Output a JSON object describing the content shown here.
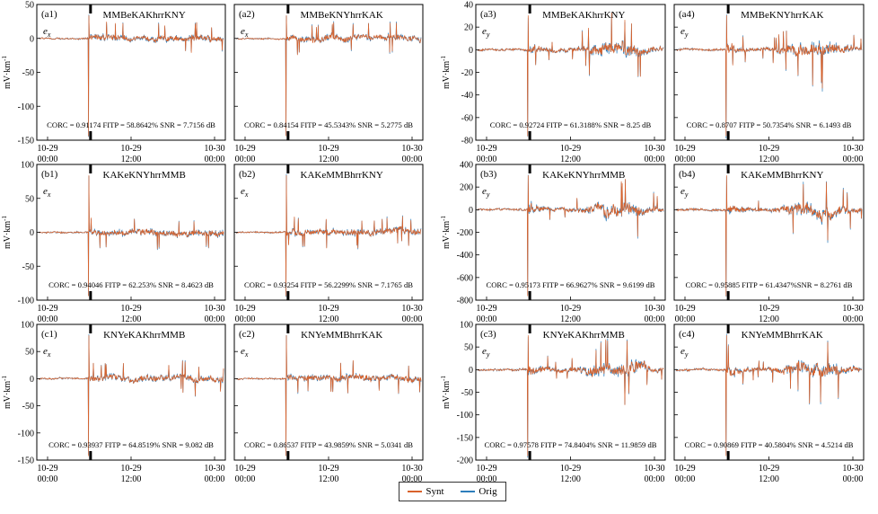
{
  "legend": {
    "synt": "Synt",
    "orig": "Orig"
  },
  "colors": {
    "synt": "#d9622b",
    "orig": "#2e7ebc"
  },
  "chart_data": [
    {
      "id": "a1",
      "label": "(a1)",
      "title": "MMBeKAKhrrKNY",
      "comp": "e",
      "sub": "x",
      "type": "line",
      "ylabel": "mV·km",
      "ylabel_sup": "-1",
      "ylim": [
        -150,
        50
      ],
      "yticks": [
        -150,
        -100,
        -50,
        0,
        50
      ],
      "xticks": [
        {
          "top": "10-29",
          "bot": "00:00"
        },
        {
          "top": "10-29",
          "bot": "12:00"
        },
        {
          "top": "10-30",
          "bot": "00:00"
        }
      ],
      "stats": "CORC = 0.91174   FITP = 58.8642%   SNR = 7.7156 dB"
    },
    {
      "id": "a2",
      "label": "(a2)",
      "title": "MMBeKNYhrrKAK",
      "comp": "e",
      "sub": "x",
      "type": "line",
      "ylabel": "",
      "ylabel_sup": "",
      "ylim": [
        -150,
        50
      ],
      "yticks": [],
      "xticks": [
        {
          "top": "10-29",
          "bot": "00:00"
        },
        {
          "top": "10-29",
          "bot": "12:00"
        },
        {
          "top": "10-30",
          "bot": "00:00"
        }
      ],
      "stats": "CORC = 0.84154   FITP = 45.5343%   SNR = 5.2775 dB"
    },
    {
      "id": "a3",
      "label": "(a3)",
      "title": "MMBeKAKhrrKNY",
      "comp": "e",
      "sub": "y",
      "type": "line",
      "ylabel": "mV·km",
      "ylabel_sup": "-1",
      "ylim": [
        -80,
        40
      ],
      "yticks": [
        -80,
        -60,
        -40,
        -20,
        0,
        20,
        40
      ],
      "xticks": [
        {
          "top": "10-29",
          "bot": "00:00"
        },
        {
          "top": "10-29",
          "bot": "12:00"
        },
        {
          "top": "10-30",
          "bot": "00:00"
        }
      ],
      "stats": "CORC = 0.92724   FITP = 61.3188%   SNR = 8.25 dB"
    },
    {
      "id": "a4",
      "label": "(a4)",
      "title": "MMBeKNYhrrKAK",
      "comp": "e",
      "sub": "y",
      "type": "line",
      "ylabel": "",
      "ylabel_sup": "",
      "ylim": [
        -80,
        40
      ],
      "yticks": [],
      "xticks": [
        {
          "top": "10-29",
          "bot": "00:00"
        },
        {
          "top": "10-29",
          "bot": "12:00"
        },
        {
          "top": "10-30",
          "bot": "00:00"
        }
      ],
      "stats": "CORC = 0.8707   FITP = 50.7354%   SNR = 6.1493 dB"
    },
    {
      "id": "b1",
      "label": "(b1)",
      "title": "KAKeKNYhrrMMB",
      "comp": "e",
      "sub": "x",
      "type": "line",
      "ylabel": "mV·km",
      "ylabel_sup": "-1",
      "ylim": [
        -100,
        100
      ],
      "yticks": [
        -100,
        -50,
        0,
        50,
        100
      ],
      "xticks": [
        {
          "top": "10-29",
          "bot": "00:00"
        },
        {
          "top": "10-29",
          "bot": "12:00"
        },
        {
          "top": "10-30",
          "bot": "00:00"
        }
      ],
      "stats": "CORC = 0.94046   FITP = 62.253%   SNR = 8.4623 dB"
    },
    {
      "id": "b2",
      "label": "(b2)",
      "title": "KAKeMMBhrrKNY",
      "comp": "e",
      "sub": "x",
      "type": "line",
      "ylabel": "",
      "ylabel_sup": "",
      "ylim": [
        -100,
        100
      ],
      "yticks": [],
      "xticks": [
        {
          "top": "10-29",
          "bot": "00:00"
        },
        {
          "top": "10-29",
          "bot": "12:00"
        },
        {
          "top": "10-30",
          "bot": "00:00"
        }
      ],
      "stats": "CORC = 0.93254   FITP = 56.2299%   SNR = 7.1765 dB"
    },
    {
      "id": "b3",
      "label": "(b3)",
      "title": "KAKeKNYhrrMMB",
      "comp": "e",
      "sub": "y",
      "type": "line",
      "ylabel": "mV·km",
      "ylabel_sup": "-1",
      "ylim": [
        -800,
        400
      ],
      "yticks": [
        -800,
        -600,
        -400,
        -200,
        0,
        200,
        400
      ],
      "xticks": [
        {
          "top": "10-29",
          "bot": "00:00"
        },
        {
          "top": "10-29",
          "bot": "12:00"
        },
        {
          "top": "10-30",
          "bot": "00:00"
        }
      ],
      "stats": "CORC = 0.95173   FITP = 66.9627%   SNR = 9.6199 dB"
    },
    {
      "id": "b4",
      "label": "(b4)",
      "title": "KAKeMMBhrrKNY",
      "comp": "e",
      "sub": "y",
      "type": "line",
      "ylabel": "",
      "ylabel_sup": "",
      "ylim": [
        -800,
        400
      ],
      "yticks": [],
      "xticks": [
        {
          "top": "10-29",
          "bot": "00:00"
        },
        {
          "top": "10-29",
          "bot": "12:00"
        },
        {
          "top": "10-30",
          "bot": "00:00"
        }
      ],
      "stats": "CORC = 0.95885   FITP = 61.4347%SNR = 8.2761 dB"
    },
    {
      "id": "c1",
      "label": "(c1)",
      "title": "KNYeKAKhrrMMB",
      "comp": "e",
      "sub": "x",
      "type": "line",
      "ylabel": "mV·km",
      "ylabel_sup": "-1",
      "ylim": [
        -150,
        100
      ],
      "yticks": [
        -150,
        -100,
        -50,
        0,
        50,
        100
      ],
      "xticks": [
        {
          "top": "10-29",
          "bot": "00:00"
        },
        {
          "top": "10-29",
          "bot": "12:00"
        },
        {
          "top": "10-30",
          "bot": "00:00"
        }
      ],
      "stats": "CORC = 0.93937   FITP = 64.8519%   SNR = 9.082 dB"
    },
    {
      "id": "c2",
      "label": "(c2)",
      "title": "KNYeMMBhrrKAK",
      "comp": "e",
      "sub": "x",
      "type": "line",
      "ylabel": "",
      "ylabel_sup": "",
      "ylim": [
        -150,
        100
      ],
      "yticks": [],
      "xticks": [
        {
          "top": "10-29",
          "bot": "00:00"
        },
        {
          "top": "10-29",
          "bot": "12:00"
        },
        {
          "top": "10-30",
          "bot": "00:00"
        }
      ],
      "stats": "CORC = 0.86537   FITP = 43.9859%   SNR = 5.0341 dB"
    },
    {
      "id": "c3",
      "label": "(c3)",
      "title": "KNYeKAKhrrMMB",
      "comp": "e",
      "sub": "y",
      "type": "line",
      "ylabel": "mV·km",
      "ylabel_sup": "-1",
      "ylim": [
        -200,
        100
      ],
      "yticks": [
        -200,
        -150,
        -100,
        -50,
        0,
        50,
        100
      ],
      "xticks": [
        {
          "top": "10-29",
          "bot": "00:00"
        },
        {
          "top": "10-29",
          "bot": "12:00"
        },
        {
          "top": "10-30",
          "bot": "00:00"
        }
      ],
      "stats": "CORC = 0.97578   FITP = 74.8404%   SNR = 11.9859 dB"
    },
    {
      "id": "c4",
      "label": "(c4)",
      "title": "KNYeMMBhrrKAK",
      "comp": "e",
      "sub": "y",
      "type": "line",
      "ylabel": "",
      "ylabel_sup": "",
      "ylim": [
        -200,
        100
      ],
      "yticks": [],
      "xticks": [
        {
          "top": "10-29",
          "bot": "00:00"
        },
        {
          "top": "10-29",
          "bot": "12:00"
        },
        {
          "top": "10-30",
          "bot": "00:00"
        }
      ],
      "stats": "CORC = 0.90869   FITP = 40.5804%   SNR = 4.5214 dB"
    }
  ]
}
